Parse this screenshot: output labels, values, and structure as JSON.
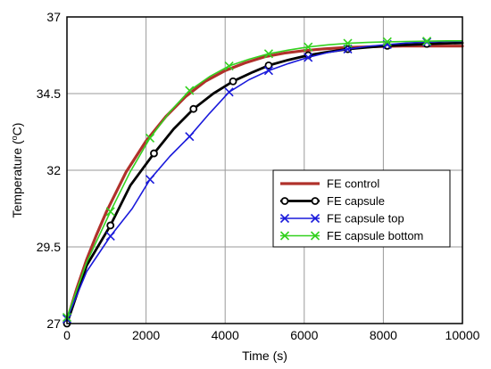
{
  "chart_data": {
    "type": "line",
    "xlabel": "Time (s)",
    "ylabel": "Temperature (",
    "ylabel_sup": "o",
    "ylabel_tail": "C)",
    "xlim": [
      0,
      10000
    ],
    "ylim": [
      27,
      37
    ],
    "xticks": [
      0,
      2000,
      4000,
      6000,
      8000,
      10000
    ],
    "yticks": [
      27,
      29.5,
      32,
      34.5,
      37
    ],
    "ytick_labels": [
      "27",
      "29.5",
      "32",
      "34.5",
      "37"
    ],
    "grid": true,
    "legend_position": "center-right",
    "series": [
      {
        "name": "FE control",
        "color": "#b0312b",
        "marker": "none",
        "x": [
          0,
          250,
          500,
          750,
          1000,
          1500,
          2000,
          2500,
          3000,
          3500,
          4000,
          4500,
          5000,
          5500,
          6000,
          6500,
          7000,
          7500,
          8000,
          8500,
          9000,
          9500,
          10000
        ],
        "y": [
          27.1,
          28.15,
          29.1,
          29.9,
          30.65,
          31.95,
          32.95,
          33.75,
          34.4,
          34.9,
          35.25,
          35.5,
          35.7,
          35.82,
          35.9,
          35.96,
          36.0,
          36.02,
          36.04,
          36.05,
          36.05,
          36.05,
          36.05
        ]
      },
      {
        "name": "FE capsule",
        "color": "#000000",
        "marker": "circle",
        "x": [
          0,
          500,
          1100,
          1600,
          2200,
          2700,
          3200,
          3700,
          4200,
          4700,
          5100,
          5600,
          6100,
          6600,
          7100,
          7600,
          8100,
          8600,
          9100,
          9600,
          10000
        ],
        "y": [
          27.0,
          28.9,
          30.2,
          31.5,
          32.55,
          33.35,
          34.0,
          34.5,
          34.9,
          35.2,
          35.42,
          35.6,
          35.75,
          35.86,
          35.95,
          36.01,
          36.06,
          36.09,
          36.12,
          36.14,
          36.15
        ],
        "markers_x": [
          0,
          1100,
          2200,
          3200,
          4200,
          5100,
          6100,
          7100,
          8100,
          9100
        ],
        "markers_y": [
          27.0,
          30.2,
          32.55,
          34.0,
          34.9,
          35.42,
          35.75,
          35.95,
          36.06,
          36.12
        ]
      },
      {
        "name": "FE capsule top",
        "color": "#1a1adb",
        "marker": "x",
        "x": [
          0,
          500,
          1100,
          1650,
          2100,
          2600,
          3100,
          3600,
          4100,
          4600,
          5100,
          5600,
          6100,
          6600,
          7100,
          7600,
          8100,
          8600,
          9100,
          9600,
          10000
        ],
        "y": [
          27.15,
          28.7,
          29.85,
          30.75,
          31.7,
          32.45,
          33.1,
          33.85,
          34.55,
          34.95,
          35.25,
          35.48,
          35.68,
          35.84,
          35.95,
          36.04,
          36.1,
          36.15,
          36.18,
          36.2,
          36.2
        ],
        "markers_x": [
          0,
          1100,
          2100,
          3100,
          4100,
          5100,
          6100,
          7100,
          8100,
          9100
        ],
        "markers_y": [
          27.15,
          29.85,
          31.7,
          33.1,
          34.55,
          35.25,
          35.68,
          35.95,
          36.1,
          36.18
        ]
      },
      {
        "name": "FE capsule bottom",
        "color": "#33d11f",
        "marker": "x",
        "x": [
          0,
          500,
          1100,
          1600,
          2100,
          2600,
          3100,
          3600,
          4100,
          4600,
          5100,
          5600,
          6100,
          6600,
          7100,
          7600,
          8100,
          8600,
          9100,
          9600,
          10000
        ],
        "y": [
          27.2,
          29.0,
          30.65,
          31.95,
          33.05,
          33.9,
          34.6,
          35.05,
          35.4,
          35.62,
          35.8,
          35.92,
          36.02,
          36.09,
          36.14,
          36.17,
          36.19,
          36.2,
          36.21,
          36.22,
          36.22
        ],
        "markers_x": [
          0,
          1100,
          2100,
          3100,
          4100,
          5100,
          6100,
          7100,
          8100,
          9100
        ],
        "markers_y": [
          27.2,
          30.65,
          33.05,
          34.6,
          35.4,
          35.8,
          36.02,
          36.14,
          36.19,
          36.21
        ]
      }
    ]
  }
}
